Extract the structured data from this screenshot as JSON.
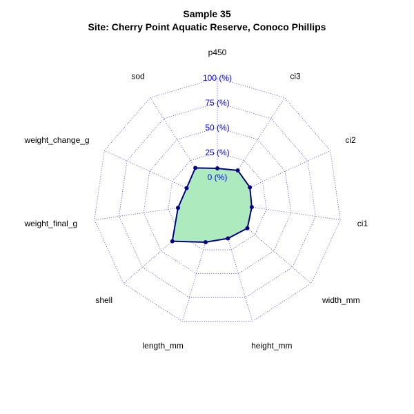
{
  "title": "Sample 35",
  "subtitle": "Site: Cherry Point Aquatic Reserve, Conoco Phillips",
  "chart_data": {
    "type": "radar",
    "title": "Sample 35",
    "subtitle": "Site: Cherry Point Aquatic Reserve, Conoco Phillips",
    "axes": [
      "p450",
      "ci3",
      "ci2",
      "ci1",
      "width_mm",
      "height_mm",
      "length_mm",
      "shell",
      "weight_final_g",
      "weight_change_g",
      "sod"
    ],
    "radial_ticks": [
      "0 (%)",
      "25 (%)",
      "50 (%)",
      "75 (%)",
      "100 (%)"
    ],
    "range": [
      0,
      100
    ],
    "grid": true,
    "series": [
      {
        "values": [
          9,
          13,
          11,
          10,
          15,
          13,
          17,
          35,
          15,
          9,
          16
        ],
        "line_color": "#000080",
        "fill_color": "#adebbf"
      }
    ]
  }
}
